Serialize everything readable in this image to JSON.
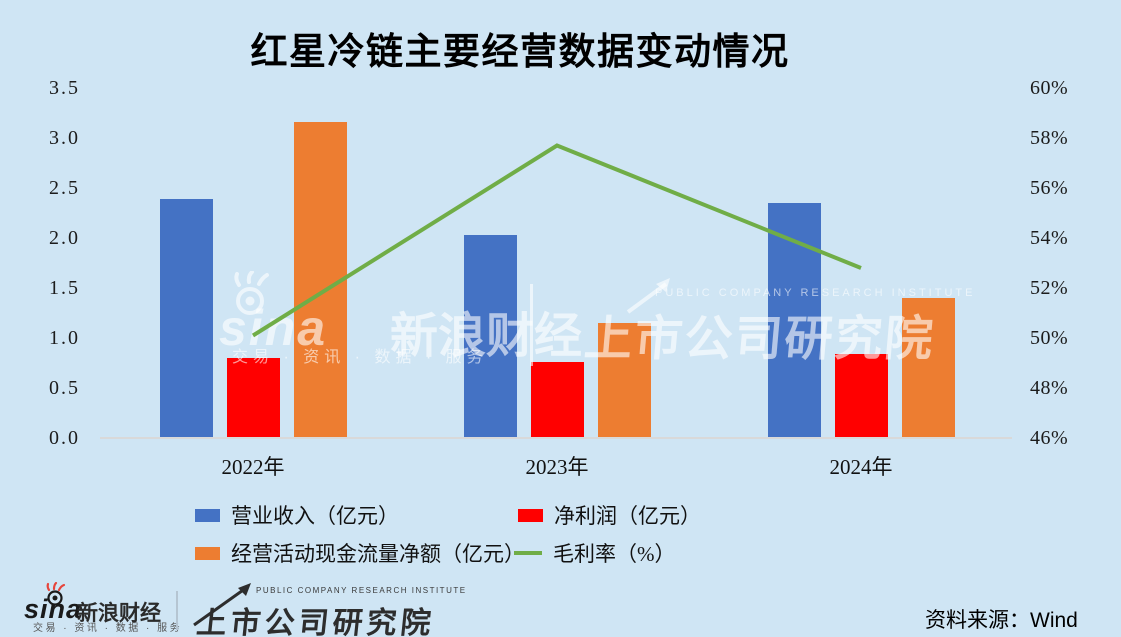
{
  "title": "红星冷链主要经营数据变动情况",
  "chart_data": {
    "type": "bar",
    "subtype": "grouped bars with secondary-axis line",
    "categories": [
      "2022年",
      "2023年",
      "2024年"
    ],
    "series": [
      {
        "name": "营业收入（亿元）",
        "type": "bar",
        "axis": "left",
        "color": "#4472c4",
        "values": [
          2.39,
          2.03,
          2.35
        ]
      },
      {
        "name": "净利润（亿元）",
        "type": "bar",
        "axis": "left",
        "color": "#ff0000",
        "values": [
          0.8,
          0.76,
          0.84
        ]
      },
      {
        "name": "经营活动现金流量净额（亿元）",
        "type": "bar",
        "axis": "left",
        "color": "#ed7d31",
        "values": [
          3.16,
          1.15,
          1.4
        ]
      },
      {
        "name": "毛利率（%）",
        "type": "line",
        "axis": "right",
        "color": "#70ad47",
        "values": [
          50.1,
          57.7,
          52.8
        ]
      }
    ],
    "left_axis": {
      "min": 0.0,
      "max": 3.5,
      "step": 0.5,
      "ticks": [
        "3.5",
        "3.0",
        "2.5",
        "2.0",
        "1.5",
        "1.0",
        "0.5",
        "0.0"
      ]
    },
    "right_axis": {
      "min": 46,
      "max": 60,
      "step": 2,
      "ticks": [
        "60%",
        "58%",
        "56%",
        "54%",
        "52%",
        "50%",
        "48%",
        "46%"
      ]
    },
    "grid": false,
    "legend_position": "bottom"
  },
  "watermark": {
    "sina_en": "sina",
    "sina_cn": "新浪财经",
    "sina_tagline": "交易 · 资讯 · 数据 · 服务",
    "institute_cn": "上市公司研究院",
    "institute_en": "PUBLIC COMPANY RESEARCH INSTITUTE"
  },
  "footer": {
    "sina_en": "sina",
    "sina_cn": "新浪财经",
    "sina_tagline": "交易 · 资讯 · 数据 · 服务",
    "institute_cn": "上市公司研究院",
    "institute_en": "PUBLIC COMPANY RESEARCH INSTITUTE",
    "source": "资料来源：Wind"
  },
  "colors": {
    "background": "#cfe5f4",
    "revenue_bar": "#4472c4",
    "net_profit_bar": "#ff0000",
    "cash_flow_bar": "#ed7d31",
    "gross_margin_line": "#70ad47",
    "axis_line": "#d9d9d9"
  }
}
